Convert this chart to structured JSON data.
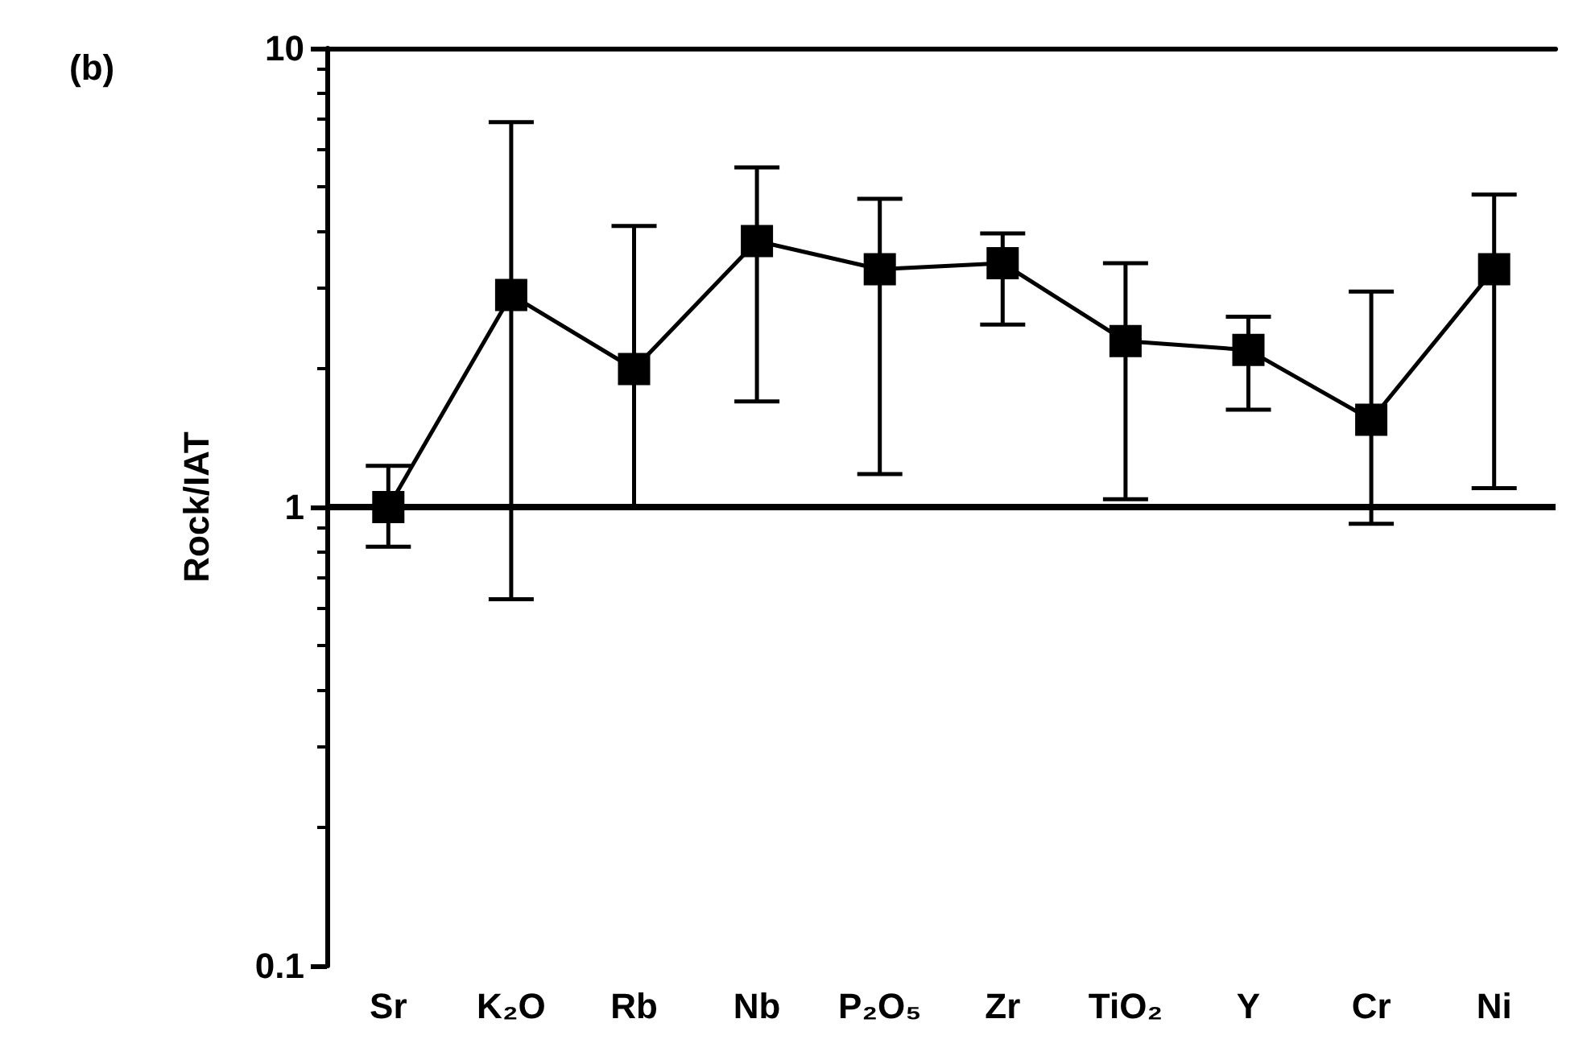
{
  "chart_data": {
    "type": "line",
    "title": "(b)",
    "ylabel": "Rock/IAT",
    "categories": [
      "Sr",
      "K₂O",
      "Rb",
      "Nb",
      "P₂O₅",
      "Zr",
      "TiO₂",
      "Y",
      "Cr",
      "Ni"
    ],
    "series": [
      {
        "color": "#000000",
        "values": [
          1.0,
          2.9,
          2.0,
          3.8,
          3.3,
          3.4,
          2.3,
          2.2,
          1.55,
          3.3
        ],
        "errors": [
          [
            0.82,
            1.23
          ],
          [
            0.63,
            6.9
          ],
          [
            1.0,
            4.1
          ],
          [
            1.7,
            5.5
          ],
          [
            1.18,
            4.7
          ],
          [
            2.5,
            3.95
          ],
          [
            1.04,
            3.4
          ],
          [
            1.63,
            2.6
          ],
          [
            0.92,
            2.95
          ],
          [
            1.1,
            4.8
          ]
        ]
      }
    ],
    "log": "y",
    "ylim": [
      0.1,
      10
    ],
    "yticks": [
      0.1,
      1,
      10
    ],
    "grid": false,
    "marker": "square",
    "line_style": "solid",
    "ref_lines": [
      {
        "axis": "y",
        "value": 1,
        "color": "#000000"
      }
    ]
  }
}
